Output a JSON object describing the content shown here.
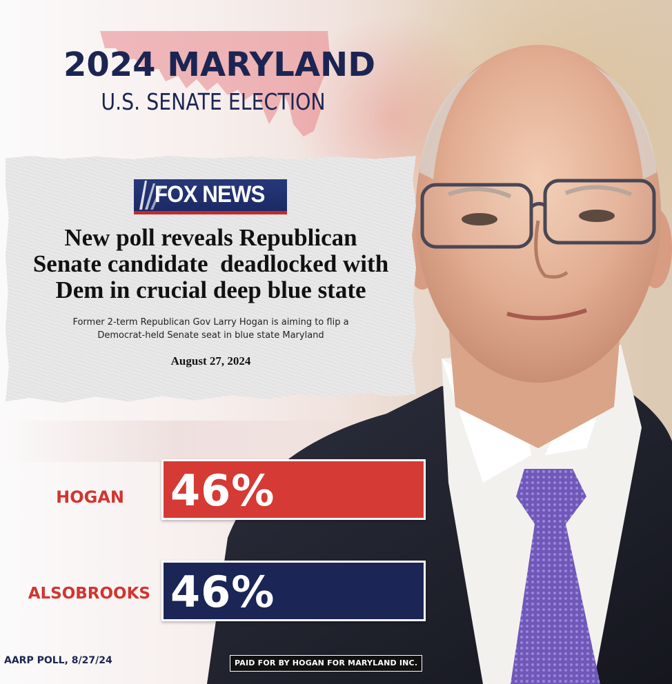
{
  "graphic": {
    "title": "2024 MARYLAND",
    "subtitle": "U.S. SENATE ELECTION"
  },
  "clipping": {
    "outlet_logo": "FOX NEWS",
    "headline_lines": [
      "New poll reveals Republican",
      "Senate candidate  deadlocked with",
      "Dem in crucial deep blue state"
    ],
    "deck_lines": [
      "Former 2-term Republican Gov Larry Hogan is aiming to flip a",
      "Democrat-held Senate seat in blue state Maryland"
    ],
    "date": "August 27, 2024"
  },
  "poll": {
    "candidates": [
      {
        "name": "HOGAN",
        "value_label": "46%",
        "value": 46,
        "color": "#d53a35"
      },
      {
        "name": "ALSOBROOKS",
        "value_label": "46%",
        "value": 46,
        "color": "#1b2556"
      }
    ],
    "source": "AARP POLL, 8/27/24"
  },
  "disclaimer": "PAID FOR BY HOGAN FOR MARYLAND INC.",
  "colors": {
    "navy": "#1c2552",
    "red": "#d3342f"
  },
  "icons": [
    "maryland-map-icon",
    "fox-news-logo",
    "portrait-photo"
  ]
}
